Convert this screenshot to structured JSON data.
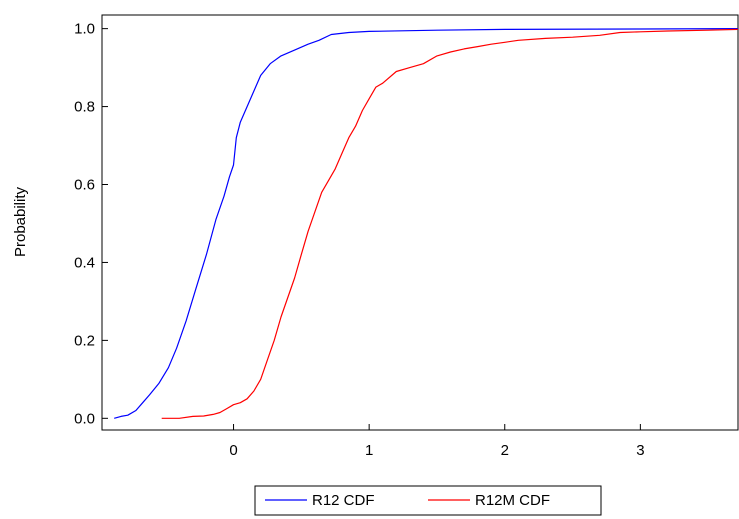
{
  "chart_data": {
    "type": "line",
    "title": "",
    "xlabel": "",
    "ylabel": "Probability",
    "xlim": [
      -0.97,
      3.72
    ],
    "ylim": [
      -0.03,
      1.035
    ],
    "xticks": [
      0,
      1,
      2,
      3
    ],
    "xtick_labels": [
      "0",
      "1",
      "2",
      "3"
    ],
    "yticks": [
      0.0,
      0.2,
      0.4,
      0.6,
      0.8,
      1.0
    ],
    "ytick_labels": [
      "0.0",
      "0.2",
      "0.4",
      "0.6",
      "0.8",
      "1.0"
    ],
    "grid": false,
    "legend_position": "bottom-center",
    "series": [
      {
        "name": "R12 CDF",
        "color": "#0000ff",
        "points": [
          [
            -0.88,
            0.0
          ],
          [
            -0.83,
            0.005
          ],
          [
            -0.78,
            0.008
          ],
          [
            -0.72,
            0.02
          ],
          [
            -0.67,
            0.04
          ],
          [
            -0.62,
            0.06
          ],
          [
            -0.55,
            0.09
          ],
          [
            -0.48,
            0.13
          ],
          [
            -0.42,
            0.18
          ],
          [
            -0.35,
            0.25
          ],
          [
            -0.28,
            0.33
          ],
          [
            -0.2,
            0.42
          ],
          [
            -0.13,
            0.51
          ],
          [
            -0.07,
            0.57
          ],
          [
            -0.03,
            0.62
          ],
          [
            0.0,
            0.65
          ],
          [
            0.02,
            0.72
          ],
          [
            0.05,
            0.76
          ],
          [
            0.1,
            0.8
          ],
          [
            0.15,
            0.84
          ],
          [
            0.2,
            0.88
          ],
          [
            0.27,
            0.91
          ],
          [
            0.35,
            0.93
          ],
          [
            0.45,
            0.945
          ],
          [
            0.55,
            0.96
          ],
          [
            0.63,
            0.97
          ],
          [
            0.72,
            0.985
          ],
          [
            0.85,
            0.99
          ],
          [
            1.0,
            0.993
          ],
          [
            1.5,
            0.996
          ],
          [
            2.0,
            0.998
          ],
          [
            3.0,
            0.999
          ],
          [
            3.72,
            1.0
          ]
        ]
      },
      {
        "name": "R12M CDF",
        "color": "#ff0000",
        "points": [
          [
            -0.53,
            0.0
          ],
          [
            -0.4,
            0.0
          ],
          [
            -0.3,
            0.005
          ],
          [
            -0.22,
            0.006
          ],
          [
            -0.15,
            0.01
          ],
          [
            -0.1,
            0.015
          ],
          [
            -0.05,
            0.025
          ],
          [
            0.0,
            0.035
          ],
          [
            0.05,
            0.04
          ],
          [
            0.1,
            0.05
          ],
          [
            0.15,
            0.07
          ],
          [
            0.2,
            0.1
          ],
          [
            0.25,
            0.15
          ],
          [
            0.3,
            0.2
          ],
          [
            0.35,
            0.26
          ],
          [
            0.4,
            0.31
          ],
          [
            0.45,
            0.36
          ],
          [
            0.5,
            0.42
          ],
          [
            0.55,
            0.48
          ],
          [
            0.6,
            0.53
          ],
          [
            0.65,
            0.58
          ],
          [
            0.7,
            0.61
          ],
          [
            0.75,
            0.64
          ],
          [
            0.8,
            0.68
          ],
          [
            0.85,
            0.72
          ],
          [
            0.9,
            0.75
          ],
          [
            0.95,
            0.79
          ],
          [
            1.0,
            0.82
          ],
          [
            1.05,
            0.85
          ],
          [
            1.1,
            0.86
          ],
          [
            1.2,
            0.89
          ],
          [
            1.3,
            0.9
          ],
          [
            1.4,
            0.91
          ],
          [
            1.5,
            0.93
          ],
          [
            1.6,
            0.94
          ],
          [
            1.7,
            0.948
          ],
          [
            1.8,
            0.954
          ],
          [
            1.9,
            0.96
          ],
          [
            2.0,
            0.965
          ],
          [
            2.1,
            0.97
          ],
          [
            2.3,
            0.975
          ],
          [
            2.5,
            0.978
          ],
          [
            2.7,
            0.983
          ],
          [
            2.85,
            0.99
          ],
          [
            3.0,
            0.992
          ],
          [
            3.2,
            0.994
          ],
          [
            3.5,
            0.996
          ],
          [
            3.72,
            0.998
          ]
        ]
      }
    ]
  }
}
